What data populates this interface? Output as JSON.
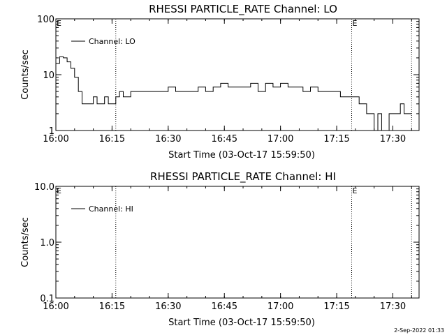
{
  "footer": {
    "timestamp": "2-Sep-2022 01:33"
  },
  "chart_data": [
    {
      "type": "line",
      "title": "RHESSI PARTICLE_RATE Channel: LO",
      "xlabel": "Start Time (03-Oct-17 15:59:50)",
      "ylabel": "Counts/sec",
      "yscale": "log",
      "xlim": [
        "16:00",
        "17:37"
      ],
      "ylim": [
        1,
        100
      ],
      "xticks": [
        "16:00",
        "16:15",
        "16:30",
        "16:45",
        "17:00",
        "17:15",
        "17:30"
      ],
      "yticks": [
        "1",
        "10",
        "100"
      ],
      "legend": {
        "label": "Channel: LO",
        "position": "top-left"
      },
      "event_markers": [
        {
          "time": "16:00",
          "label": "E"
        },
        {
          "time": "16:16",
          "label": ""
        },
        {
          "time": "17:19",
          "label": "E"
        },
        {
          "time": "17:35",
          "label": ""
        }
      ],
      "series": [
        {
          "name": "Channel: LO",
          "x": [
            "16:00",
            "16:01",
            "16:02",
            "16:03",
            "16:04",
            "16:05",
            "16:06",
            "16:07",
            "16:08",
            "16:09",
            "16:10",
            "16:11",
            "16:12",
            "16:13",
            "16:14",
            "16:15",
            "16:16",
            "16:17",
            "16:18",
            "16:20",
            "16:22",
            "16:24",
            "16:26",
            "16:28",
            "16:30",
            "16:32",
            "16:34",
            "16:36",
            "16:38",
            "16:40",
            "16:42",
            "16:44",
            "16:46",
            "16:48",
            "16:50",
            "16:52",
            "16:54",
            "16:56",
            "16:58",
            "17:00",
            "17:02",
            "17:04",
            "17:06",
            "17:08",
            "17:10",
            "17:12",
            "17:14",
            "17:16",
            "17:18",
            "17:20",
            "17:21",
            "17:22",
            "17:23",
            "17:24",
            "17:25",
            "17:26",
            "17:27",
            "17:28",
            "17:29",
            "17:30",
            "17:31",
            "17:32",
            "17:33",
            "17:35"
          ],
          "values": [
            16,
            21,
            20,
            17,
            13,
            9,
            5,
            3,
            3,
            3,
            4,
            3,
            3,
            4,
            3,
            3,
            4,
            5,
            4,
            5,
            5,
            5,
            5,
            5,
            6,
            5,
            5,
            5,
            6,
            5,
            6,
            7,
            6,
            6,
            6,
            7,
            5,
            7,
            6,
            7,
            6,
            6,
            5,
            6,
            5,
            5,
            5,
            4,
            4,
            4,
            3,
            3,
            2,
            2,
            1,
            2,
            1,
            1,
            2,
            2,
            2,
            3,
            2,
            2
          ]
        }
      ]
    },
    {
      "type": "line",
      "title": "RHESSI PARTICLE_RATE Channel: HI",
      "xlabel": "Start Time (03-Oct-17 15:59:50)",
      "ylabel": "Counts/sec",
      "yscale": "log",
      "xlim": [
        "16:00",
        "17:37"
      ],
      "ylim": [
        0.1,
        10
      ],
      "xticks": [
        "16:00",
        "16:15",
        "16:30",
        "16:45",
        "17:00",
        "17:15",
        "17:30"
      ],
      "yticks": [
        "0.1",
        "1.0",
        "10.0"
      ],
      "legend": {
        "label": "Channel: HI",
        "position": "top-left"
      },
      "event_markers": [
        {
          "time": "16:00",
          "label": "E"
        },
        {
          "time": "16:16",
          "label": ""
        },
        {
          "time": "17:19",
          "label": "E"
        },
        {
          "time": "17:35",
          "label": ""
        }
      ],
      "series": [
        {
          "name": "Channel: HI",
          "x": [],
          "values": []
        }
      ]
    }
  ]
}
